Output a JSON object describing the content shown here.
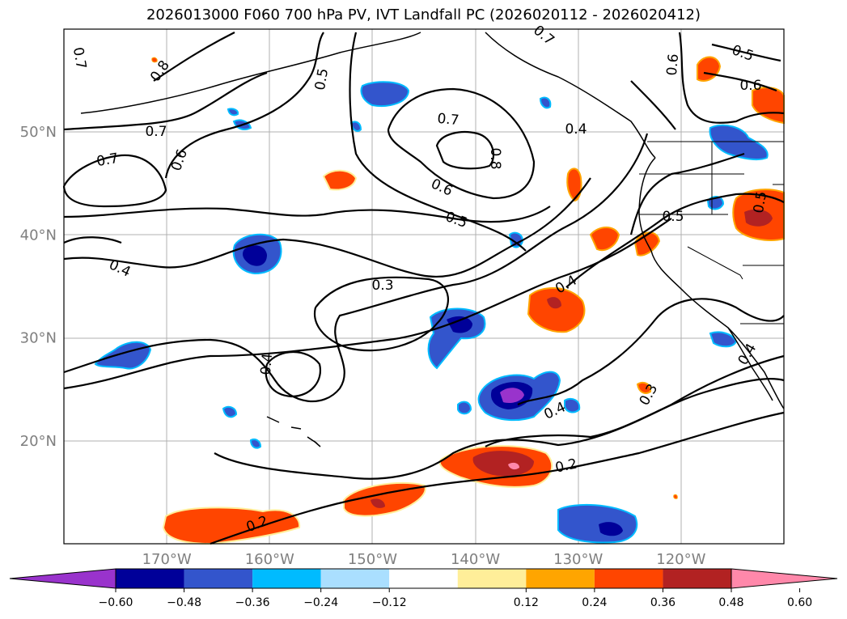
{
  "title": "2026013000 F060 700 hPa PV, IVT Landfall PC (2026020112 - 2026020412)",
  "map": {
    "lat_labels": [
      {
        "text": "50°N",
        "lat": 50
      },
      {
        "text": "40°N",
        "lat": 40
      },
      {
        "text": "30°N",
        "lat": 30
      },
      {
        "text": "20°N",
        "lat": 20
      }
    ],
    "lon_labels": [
      {
        "text": "170°W",
        "lon": -170
      },
      {
        "text": "160°W",
        "lon": -160
      },
      {
        "text": "150°W",
        "lon": -150
      },
      {
        "text": "140°W",
        "lon": -140
      },
      {
        "text": "130°W",
        "lon": -130
      },
      {
        "text": "120°W",
        "lon": -120
      }
    ],
    "lon_range": [
      -180,
      -110
    ],
    "lat_range": [
      10,
      60
    ],
    "gridlines": true,
    "contour_labels": [
      "0.7",
      "0.8",
      "0.5",
      "0.7",
      "0.7",
      "0.6",
      "0.4",
      "0.3",
      "0.4",
      "0.2",
      "0.2",
      "0.3",
      "0.4",
      "0.4",
      "0.5",
      "0.6",
      "0.7",
      "0.8",
      "0.7",
      "0.4",
      "0.6",
      "0.5",
      "0.6",
      "0.5",
      "0.5",
      "0.4"
    ]
  },
  "colorbar": {
    "colors": [
      "#9933cc",
      "#000099",
      "#3355cc",
      "#00bbff",
      "#aadfff",
      "#ffffff",
      "#ffee99",
      "#ffa500",
      "#ff4500",
      "#b22222",
      "#ff88aa"
    ],
    "tick_labels": [
      "−0.60",
      "−0.48",
      "−0.36",
      "−0.24",
      "−0.12",
      "0.12",
      "0.24",
      "0.36",
      "0.48",
      "0.60"
    ]
  }
}
